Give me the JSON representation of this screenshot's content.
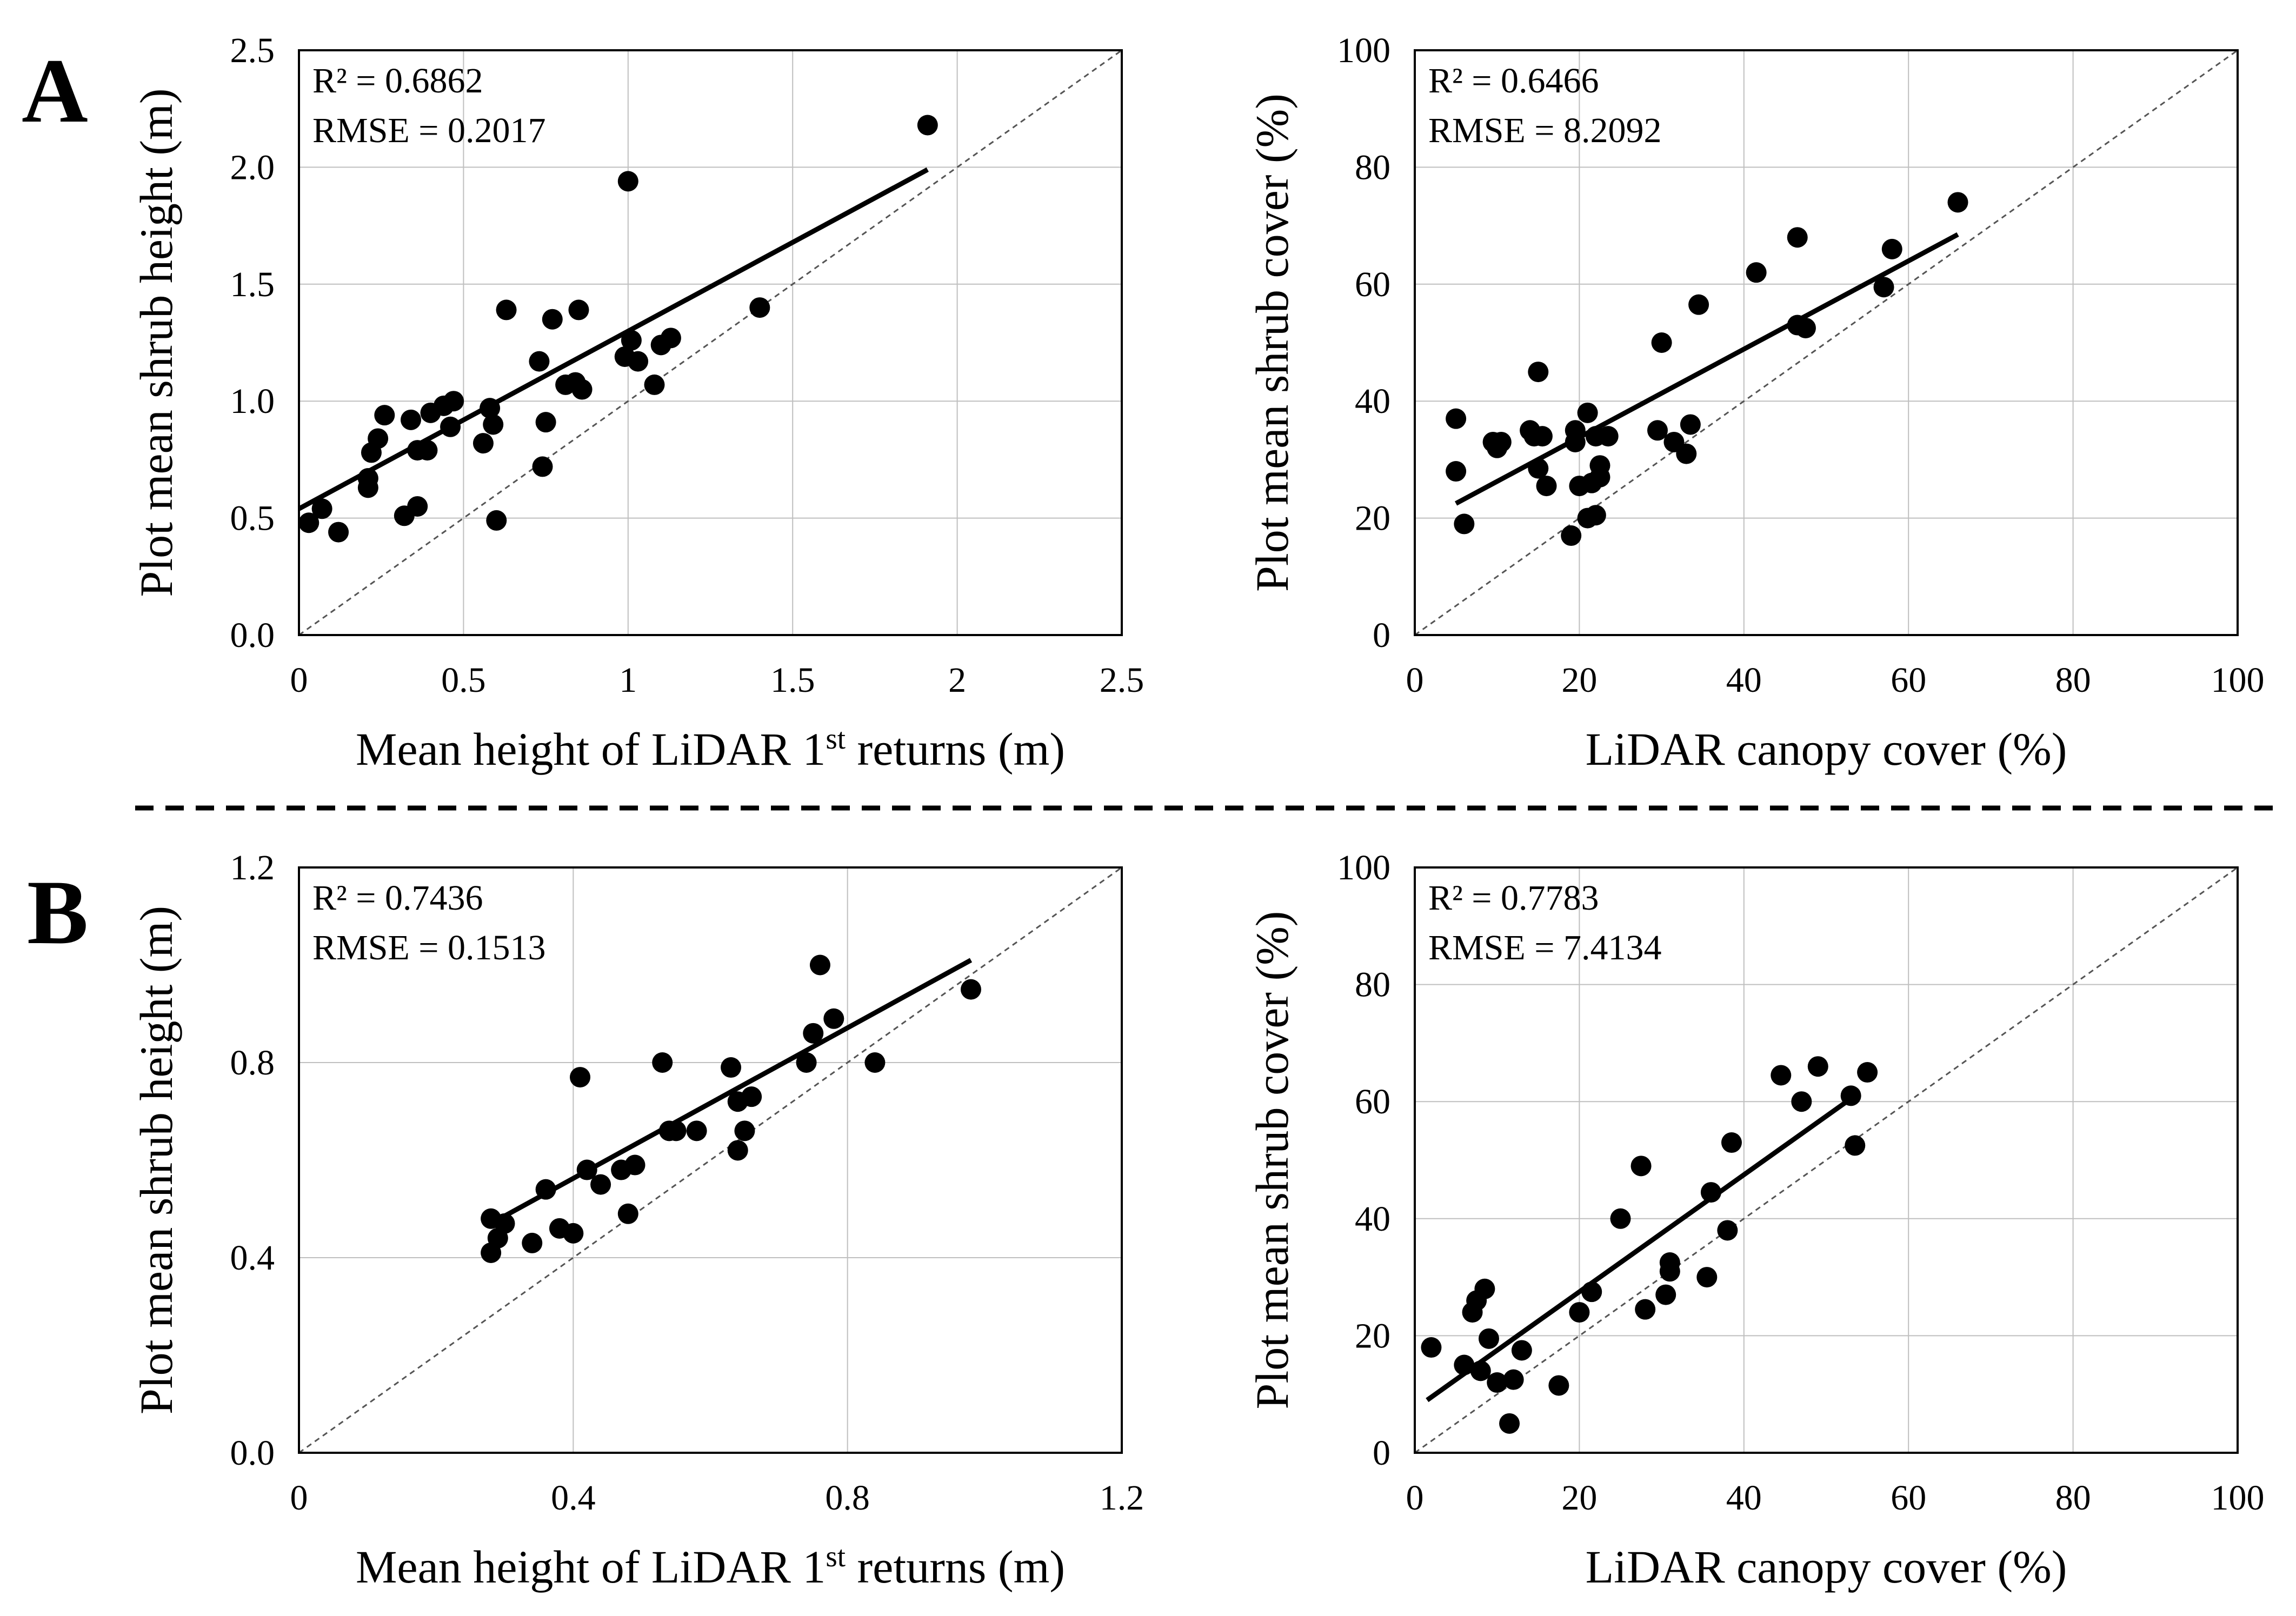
{
  "panel_labels": {
    "a": "A",
    "b": "B"
  },
  "chart_data": [
    {
      "id": "A-left",
      "type": "scatter",
      "xlabel": "Mean height of LiDAR 1st returns (m)",
      "ylabel": "Plot mean shrub height (m)",
      "xlim": [
        0,
        2.5
      ],
      "ylim": [
        0,
        2.5
      ],
      "xticks": [
        "0",
        "0.5",
        "1",
        "1.5",
        "2",
        "2.5"
      ],
      "yticks": [
        "0.0",
        "0.5",
        "1.0",
        "1.5",
        "2.0",
        "2.5"
      ],
      "grid": true,
      "r2": "R² = 0.6862",
      "rmse": "RMSE = 0.2017",
      "fit_line": {
        "x": [
          0.0,
          1.91
        ],
        "y": [
          0.54,
          1.99
        ]
      },
      "identity_line": true,
      "points": [
        [
          0.03,
          0.48
        ],
        [
          0.07,
          0.54
        ],
        [
          0.12,
          0.44
        ],
        [
          0.21,
          0.63
        ],
        [
          0.21,
          0.67
        ],
        [
          0.22,
          0.78
        ],
        [
          0.24,
          0.84
        ],
        [
          0.26,
          0.94
        ],
        [
          0.32,
          0.51
        ],
        [
          0.34,
          0.92
        ],
        [
          0.36,
          0.55
        ],
        [
          0.36,
          0.79
        ],
        [
          0.39,
          0.79
        ],
        [
          0.4,
          0.95
        ],
        [
          0.44,
          0.98
        ],
        [
          0.46,
          0.89
        ],
        [
          0.47,
          1.0
        ],
        [
          0.56,
          0.82
        ],
        [
          0.58,
          0.97
        ],
        [
          0.59,
          0.9
        ],
        [
          0.6,
          0.49
        ],
        [
          0.63,
          1.39
        ],
        [
          0.73,
          1.17
        ],
        [
          0.74,
          0.72
        ],
        [
          0.75,
          0.91
        ],
        [
          0.77,
          1.35
        ],
        [
          0.81,
          1.07
        ],
        [
          0.84,
          1.08
        ],
        [
          0.85,
          1.39
        ],
        [
          0.86,
          1.05
        ],
        [
          0.99,
          1.19
        ],
        [
          1.0,
          1.94
        ],
        [
          1.01,
          1.26
        ],
        [
          1.03,
          1.17
        ],
        [
          1.08,
          1.07
        ],
        [
          1.1,
          1.24
        ],
        [
          1.13,
          1.27
        ],
        [
          1.4,
          1.4
        ],
        [
          1.91,
          2.18
        ]
      ]
    },
    {
      "id": "A-right",
      "type": "scatter",
      "xlabel": "LiDAR canopy cover (%)",
      "ylabel": "Plot mean shrub cover (%)",
      "xlim": [
        0,
        100
      ],
      "ylim": [
        0,
        100
      ],
      "xticks": [
        "0",
        "20",
        "40",
        "60",
        "80",
        "100"
      ],
      "yticks": [
        "0",
        "20",
        "40",
        "60",
        "80",
        "100"
      ],
      "grid": true,
      "r2": "R² = 0.6466",
      "rmse": "RMSE = 8.2092",
      "fit_line": {
        "x": [
          5,
          66
        ],
        "y": [
          22.5,
          68.5
        ]
      },
      "identity_line": true,
      "points": [
        [
          5,
          37
        ],
        [
          5,
          28
        ],
        [
          6,
          19
        ],
        [
          9.5,
          33
        ],
        [
          10,
          32
        ],
        [
          10.5,
          33
        ],
        [
          14,
          35
        ],
        [
          14.5,
          34
        ],
        [
          15,
          28.5
        ],
        [
          15,
          45
        ],
        [
          15.5,
          34
        ],
        [
          16,
          25.5
        ],
        [
          19,
          17
        ],
        [
          19.5,
          33
        ],
        [
          19.5,
          35
        ],
        [
          20,
          25.5
        ],
        [
          21,
          20
        ],
        [
          21,
          38
        ],
        [
          21.5,
          26
        ],
        [
          22,
          34
        ],
        [
          22,
          20.5
        ],
        [
          22.5,
          27
        ],
        [
          22.5,
          29
        ],
        [
          23.5,
          34
        ],
        [
          29.5,
          35
        ],
        [
          30,
          50
        ],
        [
          31.5,
          33
        ],
        [
          33,
          31
        ],
        [
          33.5,
          36
        ],
        [
          34.5,
          56.5
        ],
        [
          41.5,
          62
        ],
        [
          46.5,
          53
        ],
        [
          46.5,
          68
        ],
        [
          47.5,
          52.5
        ],
        [
          57,
          59.5
        ],
        [
          58,
          66
        ],
        [
          66,
          74
        ]
      ]
    },
    {
      "id": "B-left",
      "type": "scatter",
      "xlabel": "Mean height of LiDAR 1st returns (m)",
      "ylabel": "Plot mean shrub height (m)",
      "xlim": [
        0,
        1.2
      ],
      "ylim": [
        0,
        1.2
      ],
      "xticks": [
        "0",
        "0.4",
        "0.8",
        "1.2"
      ],
      "yticks": [
        "0.0",
        "0.4",
        "0.8",
        "1.2"
      ],
      "grid": true,
      "r2": "R² = 0.7436",
      "rmse": "RMSE = 0.1513",
      "fit_line": {
        "x": [
          0.28,
          0.98
        ],
        "y": [
          0.47,
          1.01
        ]
      },
      "identity_line": true,
      "points": [
        [
          0.28,
          0.41
        ],
        [
          0.28,
          0.48
        ],
        [
          0.29,
          0.44
        ],
        [
          0.3,
          0.47
        ],
        [
          0.34,
          0.43
        ],
        [
          0.36,
          0.54
        ],
        [
          0.38,
          0.46
        ],
        [
          0.4,
          0.45
        ],
        [
          0.41,
          0.77
        ],
        [
          0.42,
          0.58
        ],
        [
          0.44,
          0.55
        ],
        [
          0.47,
          0.58
        ],
        [
          0.48,
          0.49
        ],
        [
          0.49,
          0.59
        ],
        [
          0.53,
          0.8
        ],
        [
          0.54,
          0.66
        ],
        [
          0.55,
          0.66
        ],
        [
          0.58,
          0.66
        ],
        [
          0.63,
          0.79
        ],
        [
          0.64,
          0.62
        ],
        [
          0.64,
          0.72
        ],
        [
          0.65,
          0.66
        ],
        [
          0.66,
          0.73
        ],
        [
          0.74,
          0.8
        ],
        [
          0.75,
          0.86
        ],
        [
          0.76,
          1.0
        ],
        [
          0.78,
          0.89
        ],
        [
          0.84,
          0.8
        ],
        [
          0.98,
          0.95
        ]
      ]
    },
    {
      "id": "B-right",
      "type": "scatter",
      "xlabel": "LiDAR canopy cover (%)",
      "ylabel": "Plot mean shrub cover (%)",
      "xlim": [
        0,
        100
      ],
      "ylim": [
        0,
        100
      ],
      "xticks": [
        "0",
        "20",
        "40",
        "60",
        "80",
        "100"
      ],
      "yticks": [
        "0",
        "20",
        "40",
        "60",
        "80",
        "100"
      ],
      "grid": true,
      "r2": "R² = 0.7783",
      "rmse": "RMSE = 7.4134",
      "fit_line": {
        "x": [
          1.5,
          53.5
        ],
        "y": [
          9,
          61
        ]
      },
      "identity_line": true,
      "points": [
        [
          2,
          18
        ],
        [
          6,
          15
        ],
        [
          7,
          24
        ],
        [
          7.5,
          26
        ],
        [
          8,
          14
        ],
        [
          8.5,
          28
        ],
        [
          9,
          19.5
        ],
        [
          10,
          12
        ],
        [
          11.5,
          5
        ],
        [
          12,
          12.5
        ],
        [
          13,
          17.5
        ],
        [
          17.5,
          11.5
        ],
        [
          20,
          24
        ],
        [
          21.5,
          27.5
        ],
        [
          25,
          40
        ],
        [
          27.5,
          49
        ],
        [
          28,
          24.5
        ],
        [
          30.5,
          27
        ],
        [
          31,
          31
        ],
        [
          31,
          32.5
        ],
        [
          35.5,
          30
        ],
        [
          36,
          44.5
        ],
        [
          38,
          38
        ],
        [
          38.5,
          53
        ],
        [
          44.5,
          64.5
        ],
        [
          47,
          60
        ],
        [
          49,
          66
        ],
        [
          53,
          61
        ],
        [
          53.5,
          52.5
        ],
        [
          55,
          65
        ]
      ]
    }
  ]
}
